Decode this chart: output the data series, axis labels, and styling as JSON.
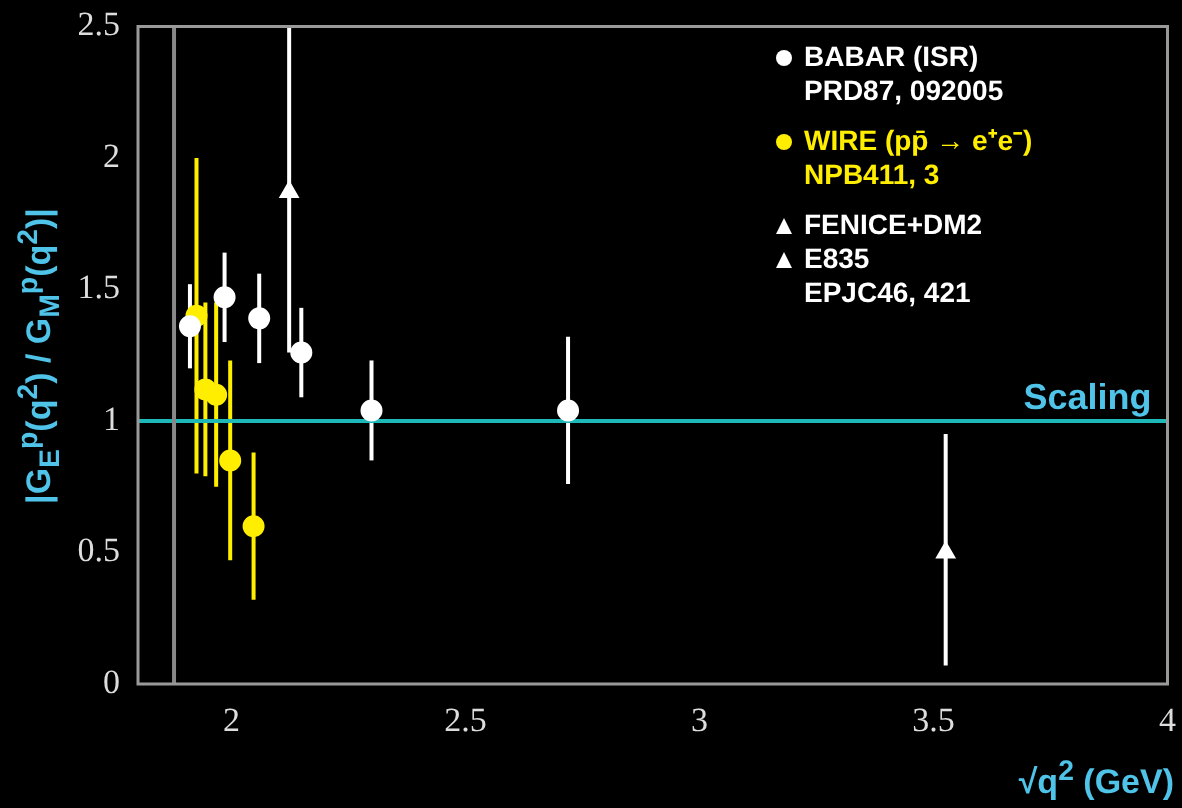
{
  "chart_data": {
    "type": "scatter",
    "xlabel": "√q$^{2}$ (GeV)",
    "ylabel": "|G$_{E}$$^{p}$(q$^{2}$) / G$_{M}$$^{p}$(q$^{2}$)|",
    "xlim": [
      1.8,
      4
    ],
    "xticks": [
      2,
      2.5,
      3,
      3.5,
      4
    ],
    "ylim": [
      0,
      2.5
    ],
    "yticks": [
      0,
      0.5,
      1,
      1.5,
      2,
      2.5
    ],
    "grid": false,
    "legend": "top right",
    "series": [
      {
        "name": "BABAR (ISR)",
        "color": "#ffffff",
        "marker": "circle",
        "x": [
          1.911,
          1.985,
          2.059,
          2.149,
          2.299,
          2.719
        ],
        "values": [
          1.36,
          1.47,
          1.39,
          1.26,
          1.04,
          1.04
        ],
        "errors": [
          0.16,
          0.17,
          0.17,
          0.17,
          0.19,
          0.28
        ]
      },
      {
        "name": "WIRE (pp̄ → e⁺e⁻)",
        "color": "#ffee00",
        "marker": "circle",
        "x": [
          1.925,
          1.944,
          1.967,
          1.997,
          2.047
        ],
        "values": [
          1.4,
          1.12,
          1.1,
          0.85,
          0.6
        ],
        "errors": [
          0.6,
          0.33,
          0.35,
          0.38,
          0.28
        ]
      },
      {
        "name": "FENICE+DM2",
        "color": "#ffffff",
        "marker": "triangle",
        "x": [
          2.123
        ],
        "values": [
          1.87
        ],
        "errors": [
          [
            1.26,
            2.5
          ]
        ]
      },
      {
        "name": "E835",
        "color": "#ffffff",
        "marker": "triangle",
        "x": [
          3.526
        ],
        "values": [
          0.5
        ],
        "errors": [
          [
            0.07,
            0.95
          ]
        ]
      }
    ],
    "ref_lines": [
      {
        "axis": "y",
        "value": 1,
        "label": "Scaling",
        "color": "#1fb8b8"
      },
      {
        "axis": "x",
        "value": 1.877,
        "color": "#888888"
      }
    ],
    "annotations": [
      "PRD87, 092005",
      "NPB411, 3",
      "EPJC46, 421"
    ]
  }
}
